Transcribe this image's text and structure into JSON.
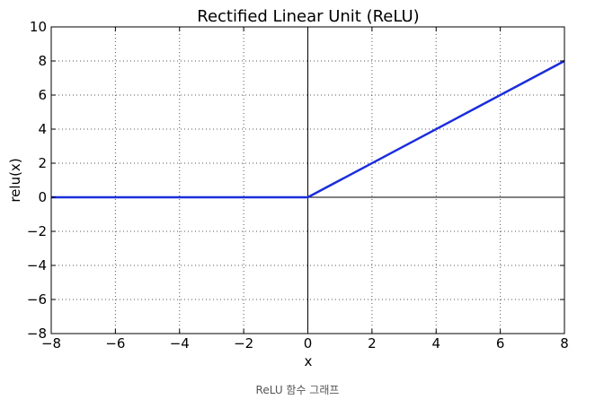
{
  "chart_data": {
    "type": "line",
    "title": "Rectified Linear Unit (ReLU)",
    "xlabel": "x",
    "ylabel": "relu(x)",
    "xlim": [
      -8,
      8
    ],
    "ylim": [
      -8,
      10
    ],
    "xticks": [
      -8,
      -6,
      -4,
      -2,
      0,
      2,
      4,
      6,
      8
    ],
    "yticks": [
      -8,
      -6,
      -4,
      -2,
      0,
      2,
      4,
      6,
      8,
      10
    ],
    "xtick_labels": [
      "−8",
      "−6",
      "−4",
      "−2",
      "0",
      "2",
      "4",
      "6",
      "8"
    ],
    "ytick_labels": [
      "−8",
      "−6",
      "−4",
      "−2",
      "0",
      "2",
      "4",
      "6",
      "8",
      "10"
    ],
    "grid": true,
    "series": [
      {
        "x": [
          -8,
          0,
          8
        ],
        "y": [
          0,
          0,
          8
        ]
      }
    ],
    "colors": {
      "series": "#1a2ddd",
      "axes": "#000000",
      "zero_lines": "#000000",
      "grid": "#555555"
    }
  },
  "caption": "ReLU 함수 그래프"
}
